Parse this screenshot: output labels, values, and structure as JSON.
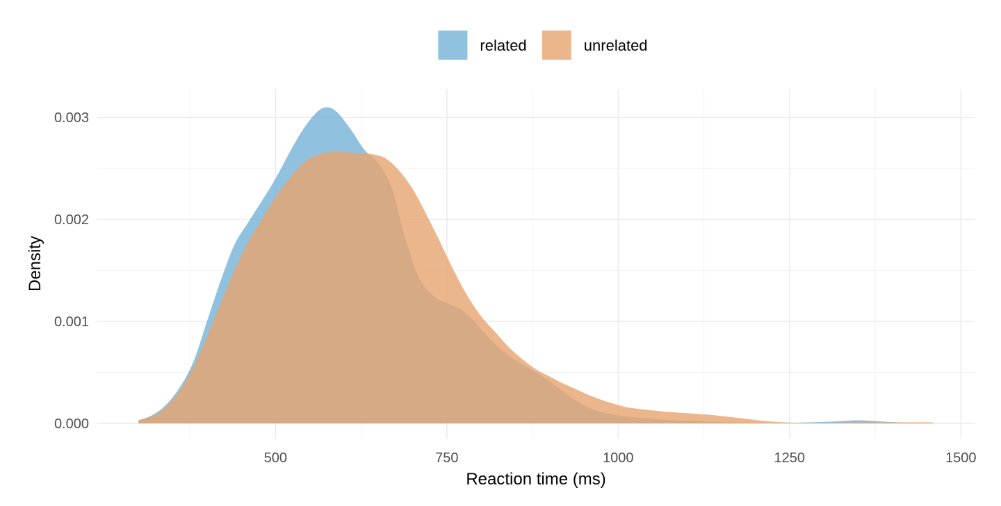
{
  "chart_data": {
    "type": "area",
    "xlabel": "Reaction time (ms)",
    "ylabel": "Density",
    "xlim": [
      240,
      1520
    ],
    "ylim": [
      -0.00015,
      0.00328
    ],
    "x_ticks": [
      500,
      750,
      1000,
      1250,
      1500
    ],
    "x_tick_labels": [
      "500",
      "750",
      "1000",
      "1250",
      "1500"
    ],
    "y_ticks": [
      0.0,
      0.001,
      0.002,
      0.003
    ],
    "y_tick_labels": [
      "0.000",
      "0.001",
      "0.002",
      "0.003"
    ],
    "grid": true,
    "legend_position": "top",
    "series": [
      {
        "name": "related",
        "color": "#6baed6",
        "x": [
          300,
          320,
          340,
          360,
          380,
          400,
          420,
          440,
          460,
          480,
          500,
          520,
          540,
          560,
          575,
          590,
          610,
          630,
          650,
          670,
          690,
          710,
          730,
          750,
          770,
          790,
          810,
          830,
          850,
          870,
          890,
          910,
          930,
          950,
          970,
          990,
          1010,
          1040,
          1080,
          1120,
          1160,
          1200,
          1240,
          1280,
          1320,
          1350,
          1380,
          1410,
          1440,
          1460
        ],
        "y": [
          3e-05,
          8e-05,
          0.00018,
          0.00035,
          0.0006,
          0.001,
          0.0014,
          0.00175,
          0.00197,
          0.00218,
          0.0024,
          0.00265,
          0.00288,
          0.00305,
          0.0031,
          0.00305,
          0.00288,
          0.00268,
          0.00255,
          0.0023,
          0.0018,
          0.00142,
          0.00125,
          0.00118,
          0.00112,
          0.001,
          0.00085,
          0.00072,
          0.00062,
          0.00054,
          0.00046,
          0.00036,
          0.00026,
          0.00018,
          0.00012,
          9e-05,
          7e-05,
          5e-05,
          3e-05,
          2e-05,
          1e-05,
          5e-06,
          5e-06,
          1e-05,
          2e-05,
          3e-05,
          2e-05,
          1e-05,
          5e-06,
          0.0
        ],
        "opacity": 0.75
      },
      {
        "name": "unrelated",
        "color": "#e6a46e",
        "x": [
          300,
          320,
          340,
          360,
          380,
          400,
          420,
          440,
          460,
          480,
          500,
          520,
          540,
          560,
          580,
          600,
          620,
          640,
          660,
          680,
          700,
          720,
          740,
          760,
          780,
          800,
          820,
          840,
          860,
          880,
          900,
          920,
          940,
          960,
          980,
          1000,
          1020,
          1060,
          1100,
          1140,
          1180,
          1220,
          1260,
          1300,
          1340,
          1380,
          1420,
          1460
        ],
        "y": [
          3e-05,
          7e-05,
          0.00016,
          0.00032,
          0.00055,
          0.00085,
          0.00118,
          0.0015,
          0.00178,
          0.002,
          0.00222,
          0.0024,
          0.00255,
          0.00263,
          0.00266,
          0.00266,
          0.00265,
          0.00264,
          0.0026,
          0.00248,
          0.0023,
          0.00205,
          0.00178,
          0.0015,
          0.00125,
          0.00105,
          0.0009,
          0.00075,
          0.00063,
          0.00053,
          0.00046,
          0.00039,
          0.00033,
          0.00027,
          0.00022,
          0.00018,
          0.00015,
          0.00012,
          0.0001,
          8e-05,
          5e-05,
          2e-05,
          5e-06,
          5e-06,
          1e-05,
          1e-05,
          1e-05,
          1e-05
        ],
        "opacity": 0.8
      }
    ]
  }
}
